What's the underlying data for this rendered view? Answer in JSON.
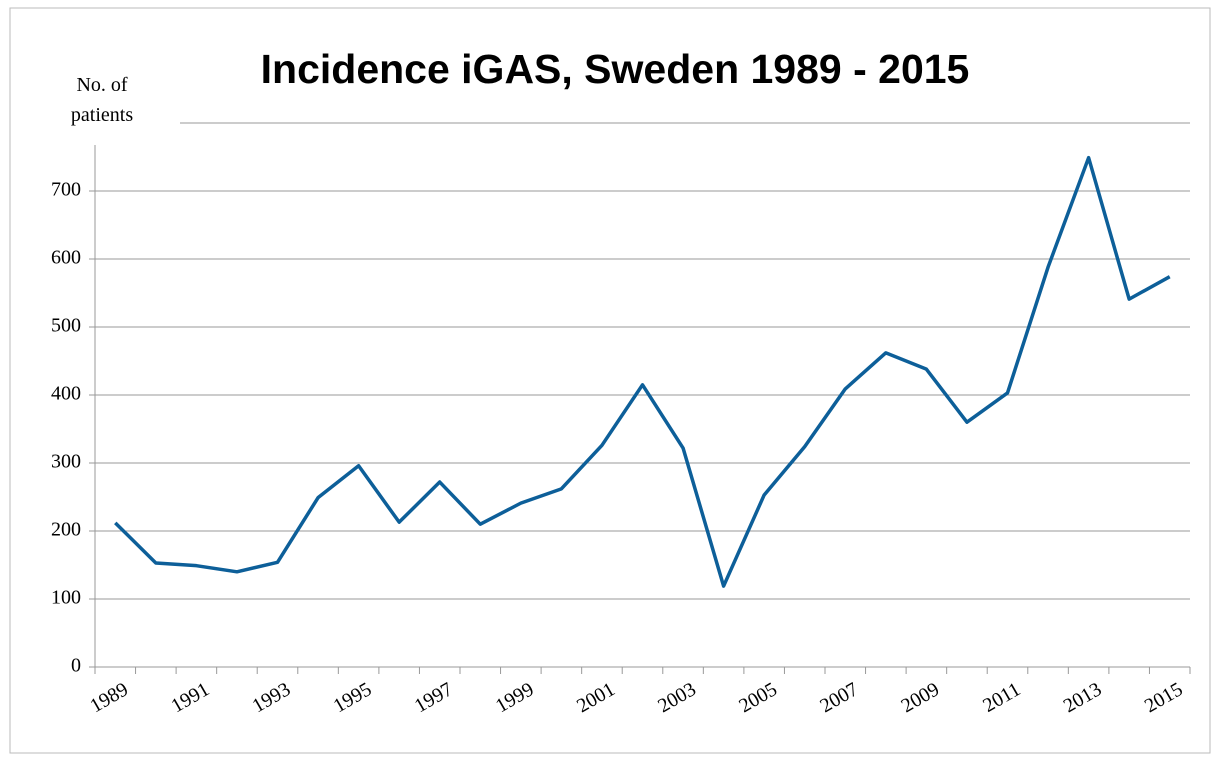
{
  "chart_data": {
    "type": "line",
    "title": "Incidence iGAS, Sweden 1989 - 2015",
    "y_label": "No. of patients",
    "categories": [
      "1989",
      null,
      "1991",
      null,
      "1993",
      null,
      "1995",
      null,
      "1997",
      null,
      "1999",
      null,
      "2001",
      null,
      "2003",
      null,
      "2005",
      null,
      "2007",
      null,
      "2009",
      null,
      "2011",
      null,
      "2013",
      null,
      "2015"
    ],
    "series": [
      {
        "color": "#0d5f99",
        "values": [
          212,
          153,
          149,
          140,
          154,
          249,
          296,
          213,
          272,
          210,
          241,
          262,
          326,
          415,
          322,
          119,
          253,
          324,
          409,
          462,
          438,
          360,
          403,
          588,
          749,
          541,
          574
        ]
      }
    ],
    "ylim": [
      0,
      800
    ],
    "yticks": [
      0,
      100,
      200,
      300,
      400,
      500,
      600,
      700
    ],
    "grid": true
  }
}
